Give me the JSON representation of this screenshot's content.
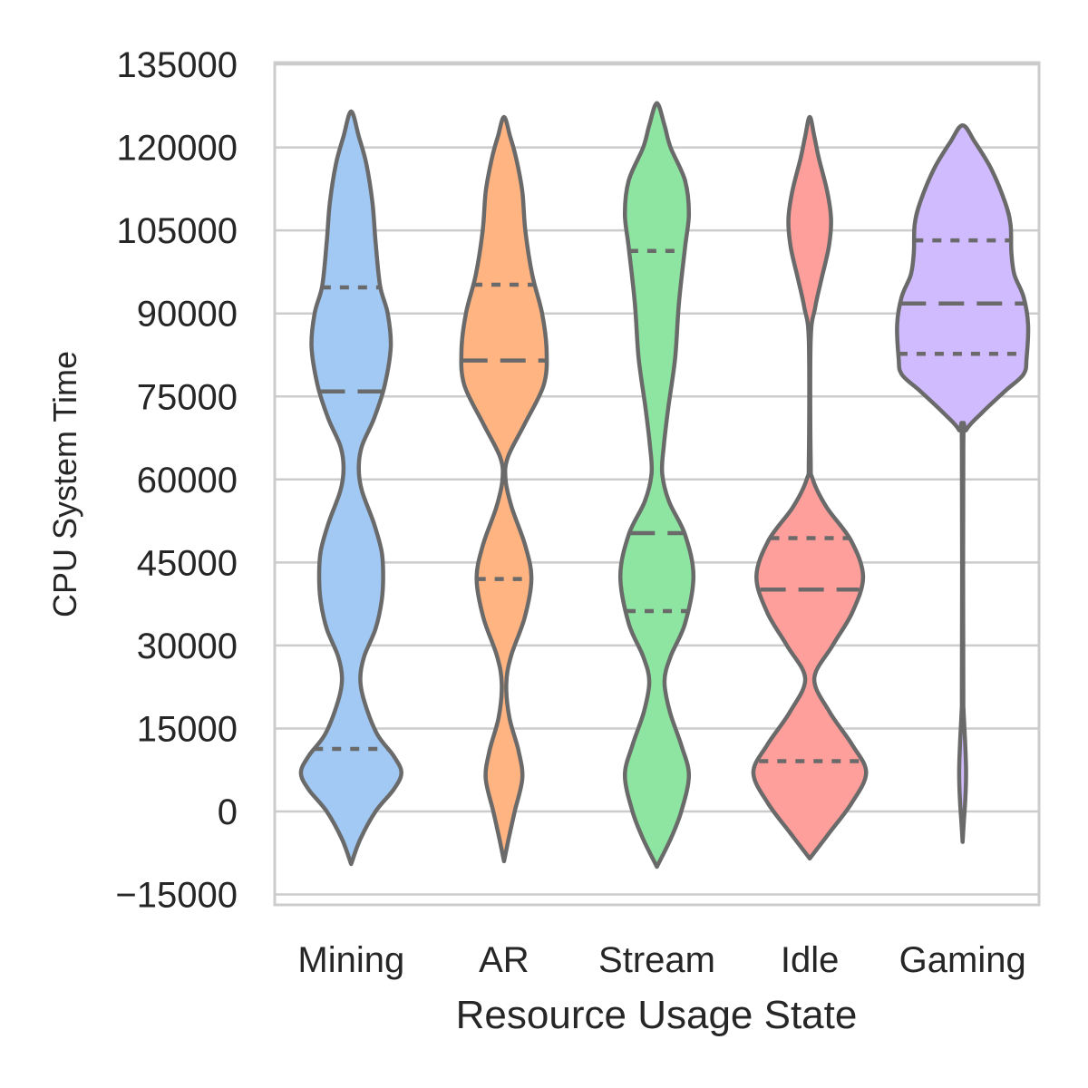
{
  "chart_data": {
    "type": "violin",
    "xlabel": "Resource Usage State",
    "ylabel": "CPU System Time",
    "ylim": [
      -16500,
      135000
    ],
    "yticks": [
      135000,
      120000,
      105000,
      90000,
      75000,
      60000,
      45000,
      30000,
      15000,
      0,
      -15000
    ],
    "ytick_labels": [
      "135000",
      "120000",
      "105000",
      "90000",
      "75000",
      "60000",
      "45000",
      "30000",
      "15000",
      "0",
      "−15000"
    ],
    "grid": true,
    "inner": "quartile",
    "categories": [
      "Mining",
      "AR",
      "Stream",
      "Idle",
      "Gaming"
    ],
    "colors": [
      "#a1c9f4",
      "#ffb482",
      "#8de5a1",
      "#ff9f9b",
      "#d0bbff"
    ],
    "line_color": "#6a6a6a",
    "violins": [
      {
        "name": "Mining",
        "min": -9500,
        "max": 126500,
        "profile": [
          [
            -9500,
            0
          ],
          [
            -5000,
            0.12
          ],
          [
            0,
            0.32
          ],
          [
            4000,
            0.56
          ],
          [
            7000,
            0.66
          ],
          [
            10000,
            0.56
          ],
          [
            14000,
            0.34
          ],
          [
            20000,
            0.17
          ],
          [
            24000,
            0.12
          ],
          [
            28000,
            0.17
          ],
          [
            33000,
            0.32
          ],
          [
            38000,
            0.4
          ],
          [
            42500,
            0.42
          ],
          [
            47000,
            0.4
          ],
          [
            52000,
            0.3
          ],
          [
            58000,
            0.14
          ],
          [
            62000,
            0.1
          ],
          [
            66000,
            0.14
          ],
          [
            71000,
            0.3
          ],
          [
            77000,
            0.44
          ],
          [
            84000,
            0.52
          ],
          [
            90000,
            0.48
          ],
          [
            95000,
            0.38
          ],
          [
            103000,
            0.32
          ],
          [
            110000,
            0.28
          ],
          [
            117000,
            0.2
          ],
          [
            122000,
            0.1
          ],
          [
            126500,
            0
          ]
        ],
        "quartiles": [
          11300,
          75900,
          94700
        ]
      },
      {
        "name": "AR",
        "min": -9000,
        "max": 125500,
        "profile": [
          [
            -9000,
            0
          ],
          [
            -5000,
            0.06
          ],
          [
            0,
            0.14
          ],
          [
            6000,
            0.24
          ],
          [
            11000,
            0.19
          ],
          [
            17000,
            0.07
          ],
          [
            23000,
            0.03
          ],
          [
            28000,
            0.09
          ],
          [
            35000,
            0.27
          ],
          [
            42000,
            0.36
          ],
          [
            48000,
            0.28
          ],
          [
            55000,
            0.1
          ],
          [
            60000,
            0.02
          ],
          [
            64000,
            0.05
          ],
          [
            70000,
            0.27
          ],
          [
            77000,
            0.52
          ],
          [
            83000,
            0.56
          ],
          [
            90000,
            0.5
          ],
          [
            97000,
            0.37
          ],
          [
            105000,
            0.28
          ],
          [
            112000,
            0.24
          ],
          [
            118000,
            0.16
          ],
          [
            122000,
            0.08
          ],
          [
            125500,
            0
          ]
        ],
        "quartiles": [
          42000,
          81500,
          95200
        ]
      },
      {
        "name": "Stream",
        "min": -10000,
        "max": 128000,
        "profile": [
          [
            -10000,
            0
          ],
          [
            -5000,
            0.18
          ],
          [
            0,
            0.32
          ],
          [
            6500,
            0.42
          ],
          [
            12000,
            0.32
          ],
          [
            18000,
            0.17
          ],
          [
            23500,
            0.1
          ],
          [
            28000,
            0.18
          ],
          [
            34000,
            0.37
          ],
          [
            42500,
            0.48
          ],
          [
            50000,
            0.37
          ],
          [
            56000,
            0.16
          ],
          [
            61000,
            0.07
          ],
          [
            66000,
            0.09
          ],
          [
            73000,
            0.15
          ],
          [
            82000,
            0.24
          ],
          [
            92000,
            0.29
          ],
          [
            102000,
            0.37
          ],
          [
            108000,
            0.42
          ],
          [
            114000,
            0.37
          ],
          [
            120000,
            0.18
          ],
          [
            124000,
            0.1
          ],
          [
            128000,
            0
          ]
        ],
        "quartiles": [
          36200,
          50300,
          101300
        ]
      },
      {
        "name": "Idle",
        "min": -8500,
        "max": 125500,
        "profile": [
          [
            -8500,
            0
          ],
          [
            -4000,
            0.25
          ],
          [
            1500,
            0.55
          ],
          [
            7000,
            0.74
          ],
          [
            12000,
            0.56
          ],
          [
            18000,
            0.26
          ],
          [
            24000,
            0.06
          ],
          [
            30000,
            0.3
          ],
          [
            36000,
            0.56
          ],
          [
            42500,
            0.7
          ],
          [
            49000,
            0.54
          ],
          [
            55000,
            0.22
          ],
          [
            60000,
            0.04
          ],
          [
            64000,
            0.012
          ],
          [
            85000,
            0.012
          ],
          [
            91000,
            0.07
          ],
          [
            96000,
            0.15
          ],
          [
            102000,
            0.25
          ],
          [
            107000,
            0.28
          ],
          [
            112000,
            0.23
          ],
          [
            118000,
            0.12
          ],
          [
            122000,
            0.06
          ],
          [
            125500,
            0
          ]
        ],
        "quartiles": [
          9100,
          40100,
          49400
        ]
      },
      {
        "name": "Gaming",
        "min": -5500,
        "max": 124000,
        "profile": [
          [
            -5500,
            0
          ],
          [
            -2000,
            0.015
          ],
          [
            2000,
            0.035
          ],
          [
            7000,
            0.045
          ],
          [
            12000,
            0.035
          ],
          [
            16000,
            0.02
          ],
          [
            19000,
            0.01
          ],
          [
            21000,
            0.009
          ],
          [
            66000,
            0.009
          ],
          [
            69000,
            0.05
          ],
          [
            72000,
            0.25
          ],
          [
            76000,
            0.56
          ],
          [
            79000,
            0.8
          ],
          [
            82000,
            0.84
          ],
          [
            88000,
            0.86
          ],
          [
            93000,
            0.8
          ],
          [
            97000,
            0.68
          ],
          [
            101000,
            0.64
          ],
          [
            106000,
            0.63
          ],
          [
            110000,
            0.56
          ],
          [
            116000,
            0.38
          ],
          [
            121000,
            0.16
          ],
          [
            124000,
            0
          ]
        ],
        "quartiles": [
          82700,
          91800,
          103200
        ]
      }
    ]
  }
}
